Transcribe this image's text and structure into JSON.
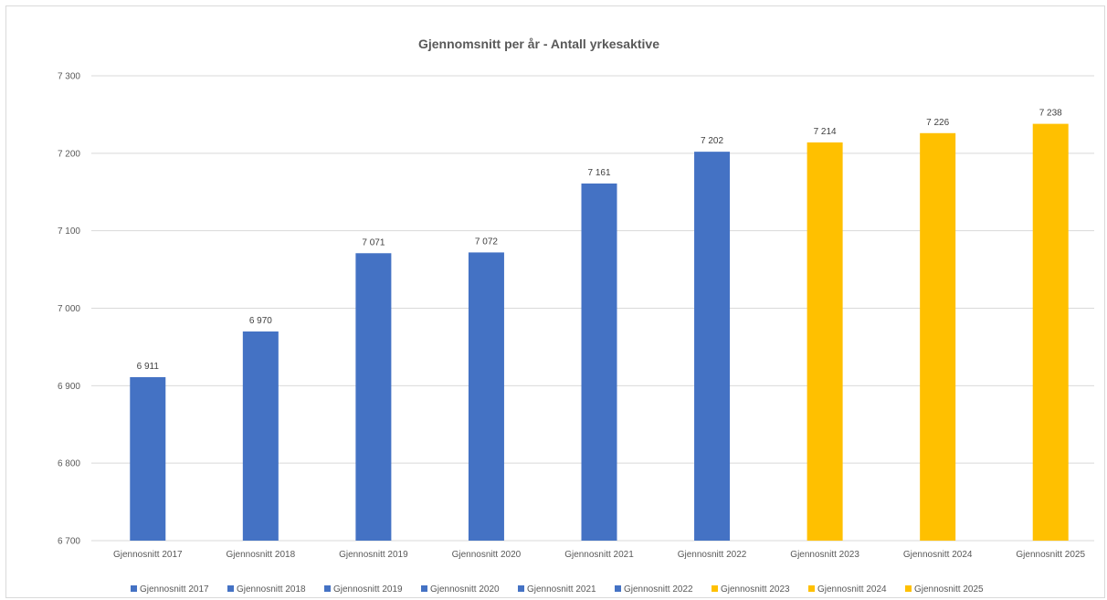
{
  "chart_data": {
    "type": "bar",
    "title": "Gjennomsnitt per år - Antall yrkesaktive",
    "xlabel": "",
    "ylabel": "",
    "categories": [
      "Gjennosnitt 2017",
      "Gjennosnitt 2018",
      "Gjennosnitt 2019",
      "Gjennosnitt 2020",
      "Gjennosnitt 2021",
      "Gjennosnitt 2022",
      "Gjennosnitt 2023",
      "Gjennosnitt 2024",
      "Gjennosnitt 2025"
    ],
    "values": [
      6911,
      6970,
      7071,
      7072,
      7161,
      7202,
      7214,
      7226,
      7238
    ],
    "value_labels": [
      "6 911",
      "6 970",
      "7 071",
      "7 072",
      "7 161",
      "7 202",
      "7 214",
      "7 226",
      "7 238"
    ],
    "bar_colors": [
      "#4472C4",
      "#4472C4",
      "#4472C4",
      "#4472C4",
      "#4472C4",
      "#4472C4",
      "#FFC000",
      "#FFC000",
      "#FFC000"
    ],
    "ylim": [
      6700,
      7300
    ],
    "yticks": [
      6700,
      6800,
      6900,
      7000,
      7100,
      7200,
      7300
    ],
    "ytick_labels": [
      "6 700",
      "6 800",
      "6 900",
      "7 000",
      "7 100",
      "7 200",
      "7 300"
    ],
    "grid": true,
    "legend_position": "bottom",
    "legend": [
      {
        "name": "Gjennosnitt 2017",
        "color": "#4472C4"
      },
      {
        "name": "Gjennosnitt 2018",
        "color": "#4472C4"
      },
      {
        "name": "Gjennosnitt 2019",
        "color": "#4472C4"
      },
      {
        "name": "Gjennosnitt 2020",
        "color": "#4472C4"
      },
      {
        "name": "Gjennosnitt 2021",
        "color": "#4472C4"
      },
      {
        "name": "Gjennosnitt 2022",
        "color": "#4472C4"
      },
      {
        "name": "Gjennosnitt 2023",
        "color": "#FFC000"
      },
      {
        "name": "Gjennosnitt 2024",
        "color": "#FFC000"
      },
      {
        "name": "Gjennosnitt 2025",
        "color": "#FFC000"
      }
    ]
  },
  "colors": {
    "gridline": "#d9d9d9",
    "axis_text": "#595959",
    "blue": "#4472C4",
    "gold": "#FFC000"
  }
}
